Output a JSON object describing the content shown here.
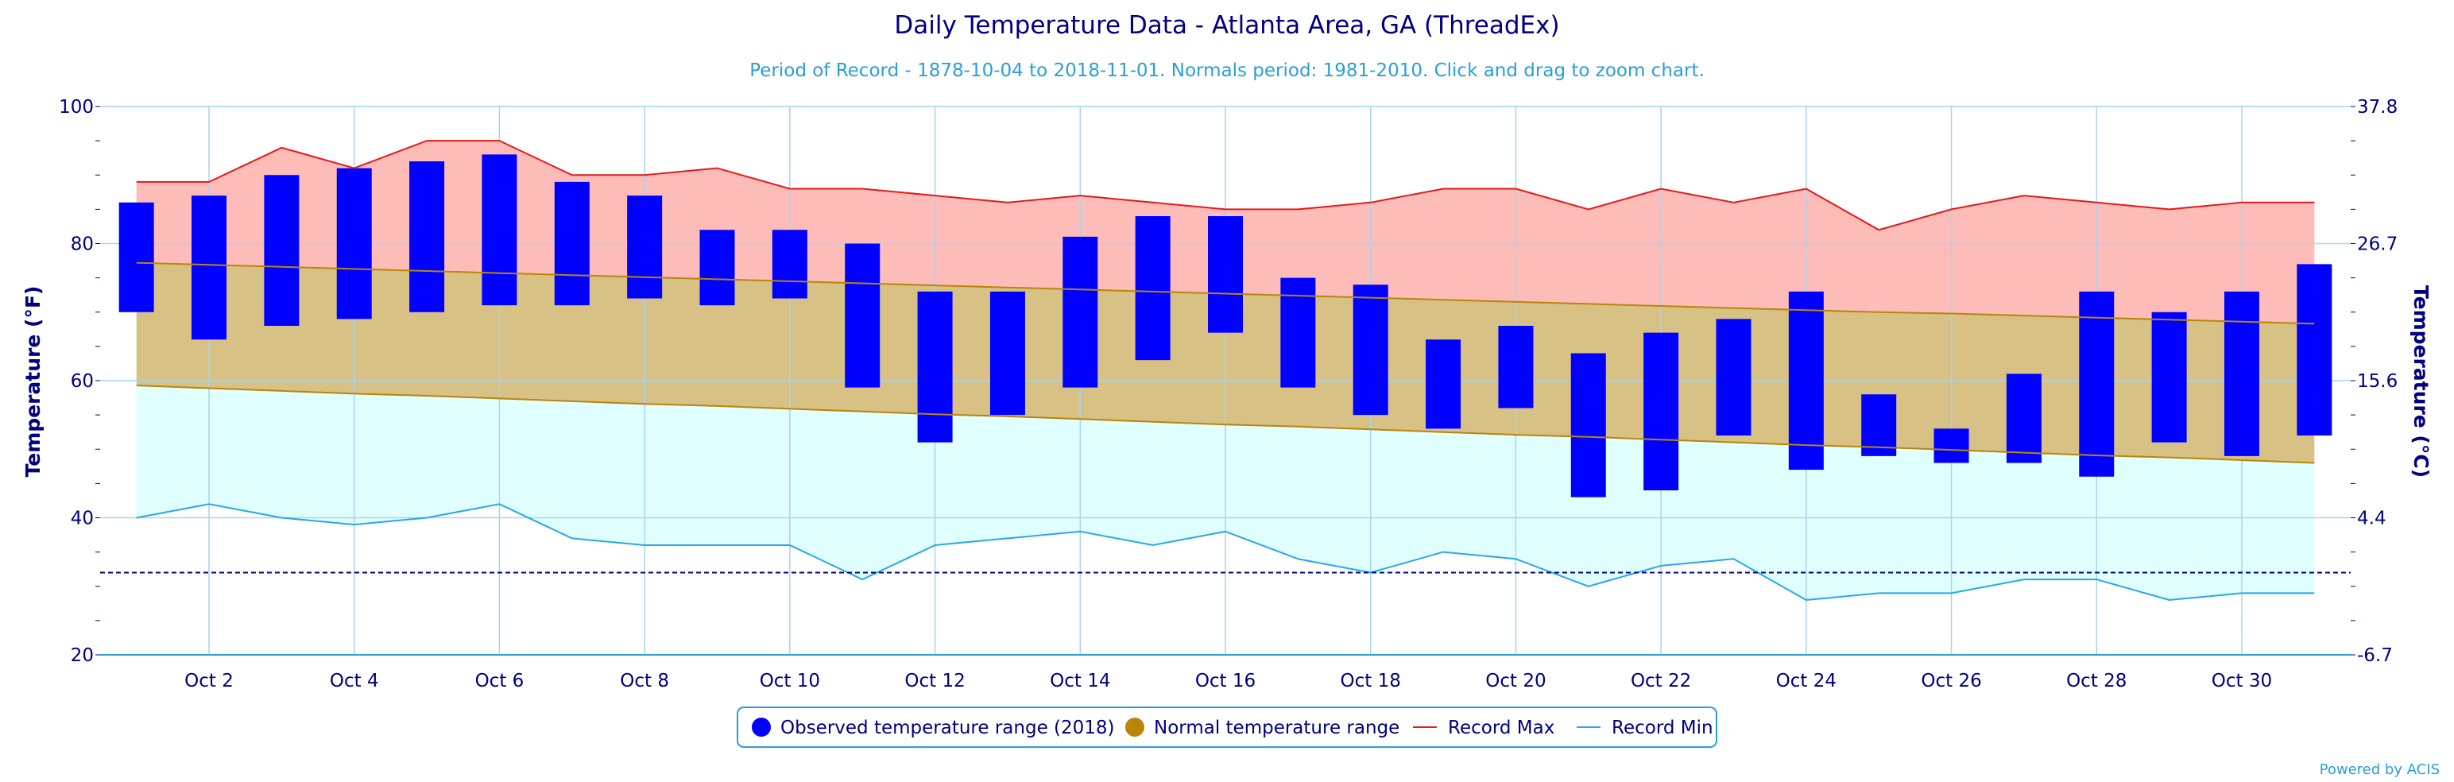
{
  "chart_data": {
    "type": "bar",
    "title": "Daily Temperature Data - Atlanta Area, GA (ThreadEx)",
    "subtitle": "Period of Record - 1878-10-04 to 2018-11-01. Normals period: 1981-2010. Click and drag to zoom chart.",
    "ylabel_left": "Temperature (°F)",
    "ylabel_right": "Temperature (°C)",
    "ylim": [
      20,
      100
    ],
    "y_ticks_left": [
      "20",
      "40",
      "60",
      "80",
      "100"
    ],
    "y_ticks_right": [
      "-6.7",
      "4.4",
      "15.6",
      "26.7",
      "37.8"
    ],
    "x_tick_labels": [
      "Oct 2",
      "Oct 4",
      "Oct 6",
      "Oct 8",
      "Oct 10",
      "Oct 12",
      "Oct 14",
      "Oct 16",
      "Oct 18",
      "Oct 20",
      "Oct 22",
      "Oct 24",
      "Oct 26",
      "Oct 28",
      "Oct 30"
    ],
    "freezing_line": 32,
    "grid": true,
    "days": [
      1,
      2,
      3,
      4,
      5,
      6,
      7,
      8,
      9,
      10,
      11,
      12,
      13,
      14,
      15,
      16,
      17,
      18,
      19,
      20,
      21,
      22,
      23,
      24,
      25,
      26,
      27,
      28,
      29,
      30,
      31
    ],
    "observed_high": [
      86,
      87,
      90,
      91,
      92,
      93,
      89,
      87,
      82,
      82,
      80,
      73,
      73,
      81,
      84,
      84,
      75,
      74,
      66,
      68,
      64,
      67,
      69,
      73,
      58,
      53,
      61,
      73,
      70,
      73,
      77
    ],
    "observed_low": [
      70,
      66,
      68,
      69,
      70,
      71,
      71,
      72,
      71,
      72,
      59,
      51,
      55,
      59,
      63,
      67,
      59,
      55,
      53,
      56,
      43,
      44,
      52,
      47,
      49,
      48,
      48,
      46,
      51,
      49,
      52
    ],
    "normal_high": [
      77.2,
      76.9,
      76.6,
      76.3,
      76.0,
      75.7,
      75.4,
      75.1,
      74.8,
      74.5,
      74.2,
      73.9,
      73.6,
      73.3,
      73.0,
      72.7,
      72.4,
      72.1,
      71.8,
      71.5,
      71.2,
      70.9,
      70.6,
      70.3,
      70.0,
      69.8,
      69.5,
      69.2,
      68.9,
      68.6,
      68.3
    ],
    "normal_low": [
      59.3,
      58.9,
      58.5,
      58.1,
      57.8,
      57.4,
      57.0,
      56.6,
      56.3,
      55.9,
      55.5,
      55.1,
      54.8,
      54.4,
      54.0,
      53.6,
      53.3,
      52.9,
      52.5,
      52.1,
      51.8,
      51.4,
      51.0,
      50.6,
      50.3,
      49.9,
      49.5,
      49.1,
      48.8,
      48.4,
      48.0
    ],
    "record_max": [
      89,
      89,
      94,
      91,
      95,
      95,
      90,
      90,
      91,
      88,
      88,
      87,
      86,
      87,
      86,
      85,
      85,
      86,
      88,
      88,
      85,
      88,
      86,
      88,
      82,
      85,
      87,
      86,
      85,
      86,
      86
    ],
    "record_min": [
      40,
      42,
      40,
      39,
      40,
      42,
      37,
      36,
      36,
      36,
      31,
      36,
      37,
      38,
      36,
      38,
      34,
      32,
      35,
      34,
      30,
      33,
      34,
      28,
      29,
      29,
      31,
      31,
      28,
      29,
      29
    ],
    "legend": [
      {
        "label": "Observed temperature range (2018)",
        "color": "#0000ff",
        "marker": "circle"
      },
      {
        "label": "Normal temperature range",
        "color": "#b8860b",
        "marker": "circle"
      },
      {
        "label": "Record Max",
        "color": "#e31a1c",
        "marker": "line"
      },
      {
        "label": "Record Min",
        "color": "#29a8e0",
        "marker": "line"
      }
    ],
    "legend_position": "bottom-center",
    "colors": {
      "observed": "#0000ff",
      "normal_fill": "#d8c184",
      "normal_line": "#b8860b",
      "record_max_fill": "#fdbcb8",
      "record_max_line": "#e31a1c",
      "record_min_fill": "#e0ffff",
      "record_min_line": "#29a8e0",
      "freezing": "#000080",
      "grid": "#a8d4ef"
    },
    "credit": "Powered by ACIS"
  }
}
